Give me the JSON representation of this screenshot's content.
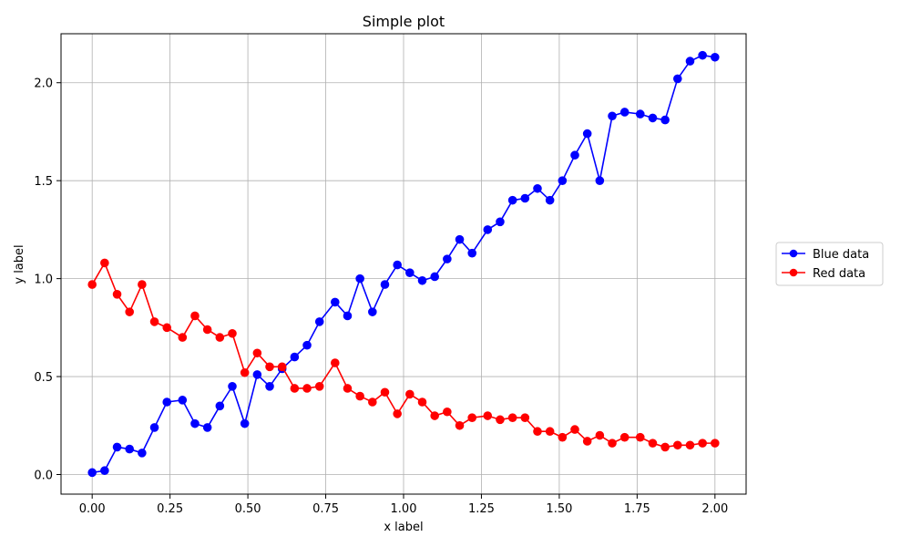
{
  "chart_data": {
    "type": "line",
    "title": "Simple plot",
    "xlabel": "x label",
    "ylabel": "y label",
    "xlim": [
      -0.1,
      2.1
    ],
    "ylim": [
      -0.1,
      2.25
    ],
    "xticks": [
      0.0,
      0.25,
      0.5,
      0.75,
      1.0,
      1.25,
      1.5,
      1.75,
      2.0
    ],
    "xtick_labels": [
      "0.00",
      "0.25",
      "0.50",
      "0.75",
      "1.00",
      "1.25",
      "1.50",
      "1.75",
      "2.00"
    ],
    "yticks": [
      0.0,
      0.5,
      1.0,
      1.5,
      2.0
    ],
    "ytick_labels": [
      "0.0",
      "0.5",
      "1.0",
      "1.5",
      "2.0"
    ],
    "grid": true,
    "legend_position": "right",
    "x": [
      0.0,
      0.04,
      0.08,
      0.12,
      0.16,
      0.2,
      0.24,
      0.29,
      0.33,
      0.37,
      0.41,
      0.45,
      0.49,
      0.53,
      0.57,
      0.61,
      0.65,
      0.69,
      0.73,
      0.78,
      0.82,
      0.86,
      0.9,
      0.94,
      0.98,
      1.02,
      1.06,
      1.1,
      1.14,
      1.18,
      1.22,
      1.27,
      1.31,
      1.35,
      1.39,
      1.43,
      1.47,
      1.51,
      1.55,
      1.59,
      1.63,
      1.67,
      1.71,
      1.76,
      1.8,
      1.84,
      1.88,
      1.92,
      1.96,
      2.0
    ],
    "series": [
      {
        "name": "Blue data",
        "color": "#0000ff",
        "values": [
          0.01,
          0.02,
          0.14,
          0.13,
          0.11,
          0.24,
          0.37,
          0.38,
          0.26,
          0.24,
          0.35,
          0.45,
          0.26,
          0.51,
          0.45,
          0.54,
          0.6,
          0.66,
          0.78,
          0.88,
          0.81,
          1.0,
          0.83,
          0.97,
          1.07,
          1.03,
          0.99,
          1.01,
          1.1,
          1.2,
          1.13,
          1.25,
          1.29,
          1.4,
          1.41,
          1.46,
          1.4,
          1.5,
          1.63,
          1.74,
          1.5,
          1.83,
          1.85,
          1.84,
          1.82,
          1.81,
          2.02,
          2.11,
          2.14,
          2.13
        ]
      },
      {
        "name": "Red data",
        "color": "#ff0000",
        "values": [
          0.97,
          1.08,
          0.92,
          0.83,
          0.97,
          0.78,
          0.75,
          0.7,
          0.81,
          0.74,
          0.7,
          0.72,
          0.52,
          0.62,
          0.55,
          0.55,
          0.44,
          0.44,
          0.45,
          0.57,
          0.44,
          0.4,
          0.37,
          0.42,
          0.31,
          0.41,
          0.37,
          0.3,
          0.32,
          0.25,
          0.29,
          0.3,
          0.28,
          0.29,
          0.29,
          0.22,
          0.22,
          0.19,
          0.23,
          0.17,
          0.2,
          0.16,
          0.19,
          0.19,
          0.16,
          0.14,
          0.15,
          0.15,
          0.16,
          0.16
        ]
      }
    ]
  }
}
